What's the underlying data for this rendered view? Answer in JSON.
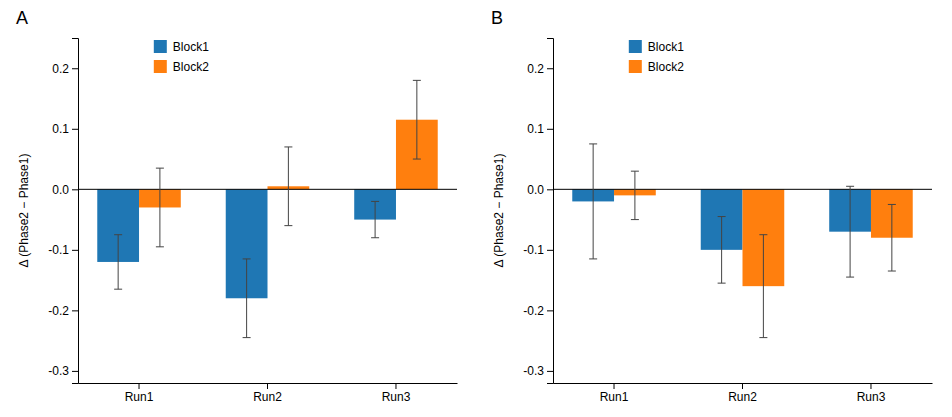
{
  "chart_data": [
    {
      "type": "bar",
      "title": "A",
      "ylabel": "Δ (Phase2 − Phase1)",
      "categories": [
        "Run1",
        "Run2",
        "Run3"
      ],
      "series": [
        {
          "name": "Block1",
          "values": [
            -0.12,
            -0.18,
            -0.05
          ],
          "errors": [
            0.045,
            0.065,
            0.03
          ]
        },
        {
          "name": "Block2",
          "values": [
            -0.03,
            0.005,
            0.115
          ],
          "errors": [
            0.065,
            0.065,
            0.065
          ]
        }
      ],
      "ylim": [
        -0.32,
        0.25
      ],
      "yticks": [
        -0.3,
        -0.2,
        -0.1,
        {
          "value": 0,
          "label": "0.0"
        },
        0.1,
        0.2
      ],
      "grid": false,
      "legend": "upper left"
    },
    {
      "type": "bar",
      "title": "B",
      "ylabel": "Δ (Phase2 − Phase1)",
      "categories": [
        "Run1",
        "Run2",
        "Run3"
      ],
      "series": [
        {
          "name": "Block1",
          "values": [
            -0.02,
            -0.1,
            -0.07
          ],
          "errors": [
            0.095,
            0.055,
            0.075
          ]
        },
        {
          "name": "Block2",
          "values": [
            -0.01,
            -0.16,
            -0.08
          ],
          "errors": [
            0.04,
            0.085,
            0.055
          ]
        }
      ],
      "ylim": [
        -0.32,
        0.25
      ],
      "yticks": [
        -0.3,
        -0.2,
        -0.1,
        {
          "value": 0,
          "label": "0.0"
        },
        0.1,
        0.2
      ],
      "grid": false,
      "legend": "upper left"
    }
  ]
}
